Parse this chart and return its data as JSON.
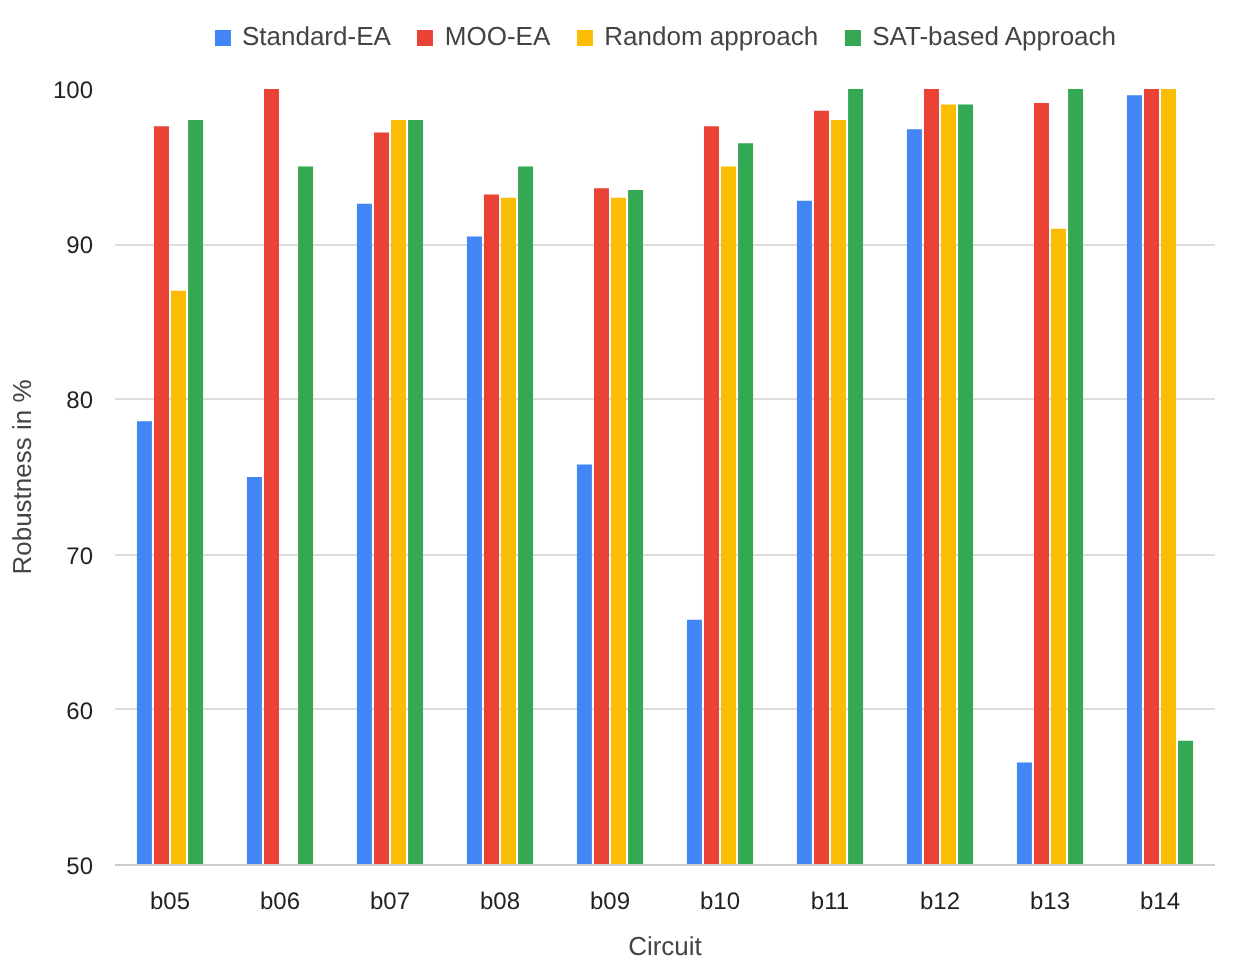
{
  "chart_data": {
    "type": "bar",
    "xlabel": "Circuit",
    "ylabel": "Robustness in %",
    "categories": [
      "b05",
      "b06",
      "b07",
      "b08",
      "b09",
      "b10",
      "b11",
      "b12",
      "b13",
      "b14"
    ],
    "series": [
      {
        "name": "Standard-EA",
        "color": "#4285f4",
        "values": [
          78.6,
          75,
          92.6,
          90.5,
          75.8,
          65.8,
          92.8,
          97.4,
          56.6,
          99.6
        ]
      },
      {
        "name": "MOO-EA",
        "color": "#ea4335",
        "values": [
          97.6,
          100,
          97.2,
          93.2,
          93.6,
          97.6,
          98.6,
          100,
          99.1,
          100
        ]
      },
      {
        "name": "Random approach",
        "color": "#fbbc04",
        "values": [
          87,
          null,
          98,
          93,
          93,
          95,
          98,
          99,
          91,
          100
        ]
      },
      {
        "name": "SAT-based Approach",
        "color": "#34a853",
        "values": [
          98,
          95,
          98,
          95,
          93.5,
          96.5,
          100,
          99,
          100,
          58
        ]
      }
    ],
    "ylim": [
      50,
      100
    ],
    "yticks": [
      50,
      60,
      70,
      80,
      90,
      100
    ],
    "grid": "y",
    "legend": "top"
  }
}
